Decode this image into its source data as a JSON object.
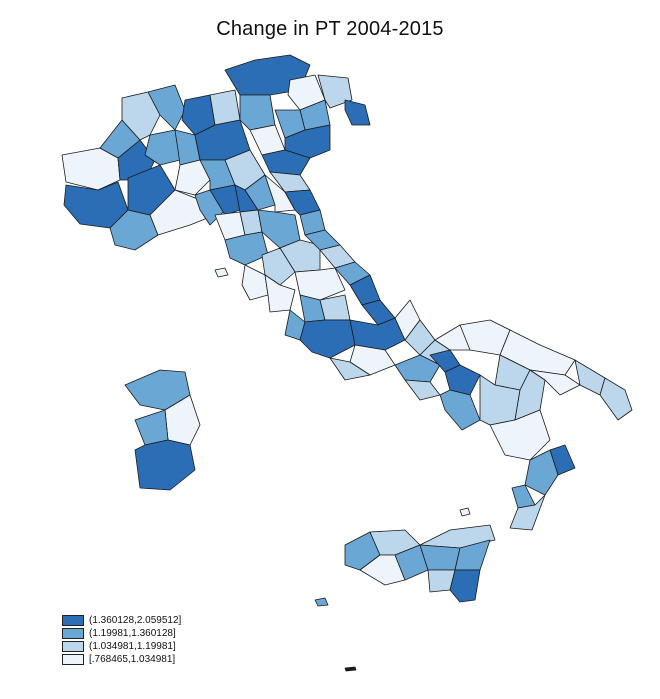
{
  "title": "Change in PT 2004-2015",
  "legend": [
    {
      "label": "(1.360128,2.059512]",
      "color": "#2c6eb5"
    },
    {
      "label": "(1.19981,1.360128]",
      "color": "#6aa7d5"
    },
    {
      "label": "(1.034981,1.19981]",
      "color": "#bcd7ec"
    },
    {
      "label": "[.768465,1.034981]",
      "color": "#eef4fb"
    }
  ]
}
